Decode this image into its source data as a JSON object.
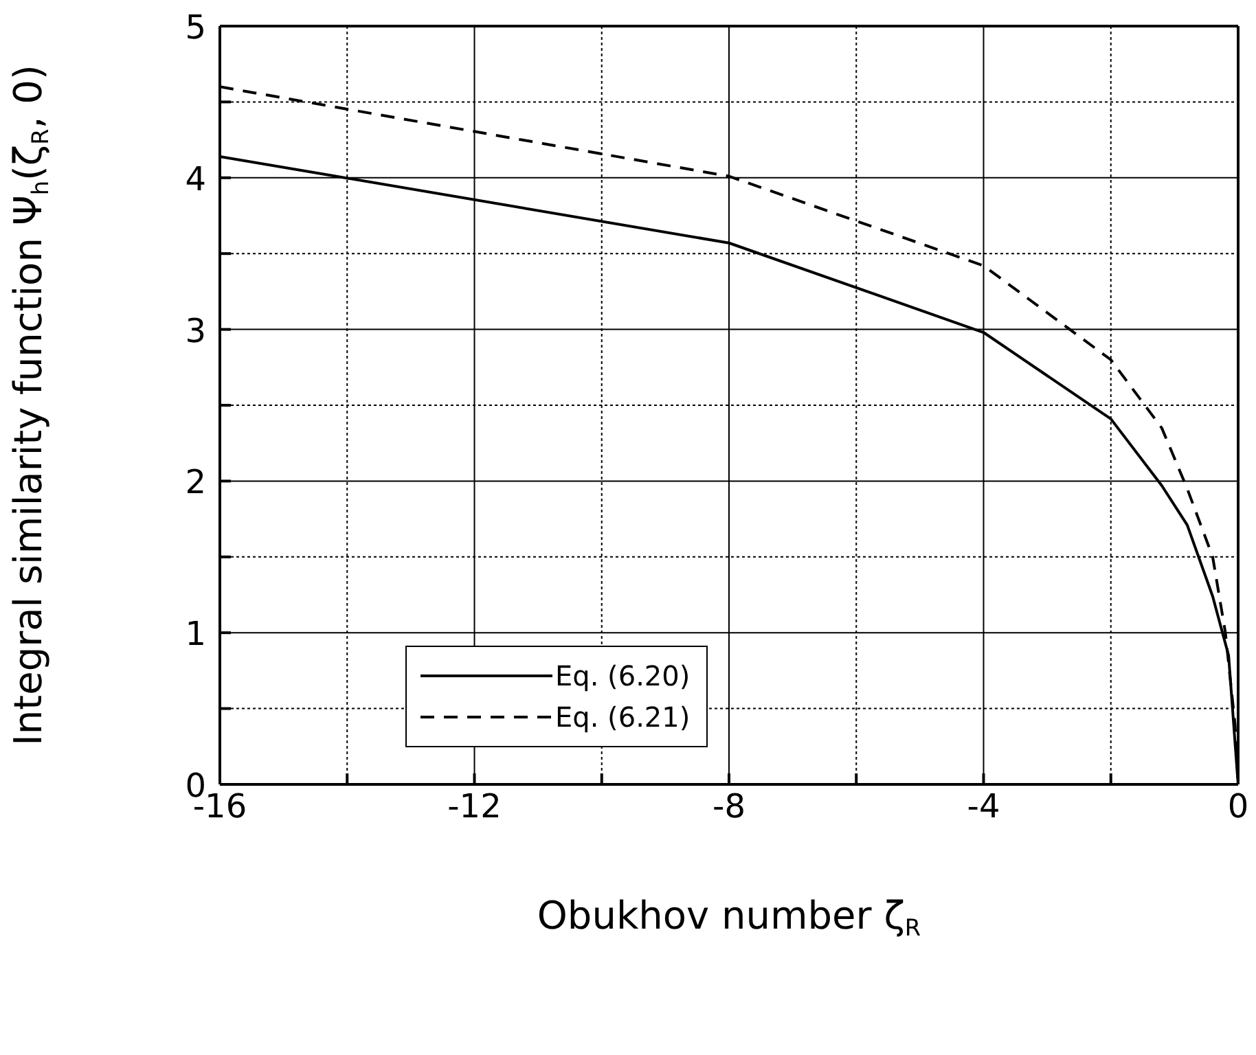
{
  "chart_data": {
    "type": "line",
    "xlabel": "Obukhov number ζ$_{R}$",
    "ylabel": "Integral similarity function Ψ$_{h}$(ζ$_{R}$, 0)",
    "xlim": [
      -16,
      0
    ],
    "xticks": [
      -16,
      {
        "value": -14,
        "label": null
      },
      -12,
      {
        "value": -10,
        "label": null
      },
      -8,
      {
        "value": -6,
        "label": null
      },
      -4,
      {
        "value": -2,
        "label": null
      },
      0
    ],
    "ylim": [
      0,
      5
    ],
    "yticks": [
      0,
      {
        "value": 0.5,
        "label": null
      },
      1,
      {
        "value": 1.5,
        "label": null
      },
      2,
      {
        "value": 2.5,
        "label": null
      },
      3,
      {
        "value": 3.5,
        "label": null
      },
      4,
      {
        "value": 4.5,
        "label": null
      },
      5
    ],
    "grid": true,
    "legend": "bottom left",
    "marker": "none",
    "series": [
      {
        "name": "Eq. (6.20)",
        "color": "#000000",
        "line_style": "solid",
        "x": [
          -16,
          -8,
          -4,
          -2,
          -1.2,
          -0.8,
          -0.4,
          -0.15,
          0
        ],
        "values": [
          4.14,
          3.57,
          2.98,
          2.41,
          1.97,
          1.71,
          1.24,
          0.85,
          0
        ]
      },
      {
        "name": "Eq. (6.21)",
        "color": "#000000",
        "line_style": "dashed",
        "x": [
          -16,
          -8,
          -4,
          -2,
          -1.2,
          -0.8,
          -0.4,
          -0.2,
          -0.05,
          0
        ],
        "values": [
          4.6,
          4.01,
          3.42,
          2.8,
          2.35,
          1.95,
          1.5,
          1.0,
          0.4,
          0
        ]
      }
    ]
  }
}
